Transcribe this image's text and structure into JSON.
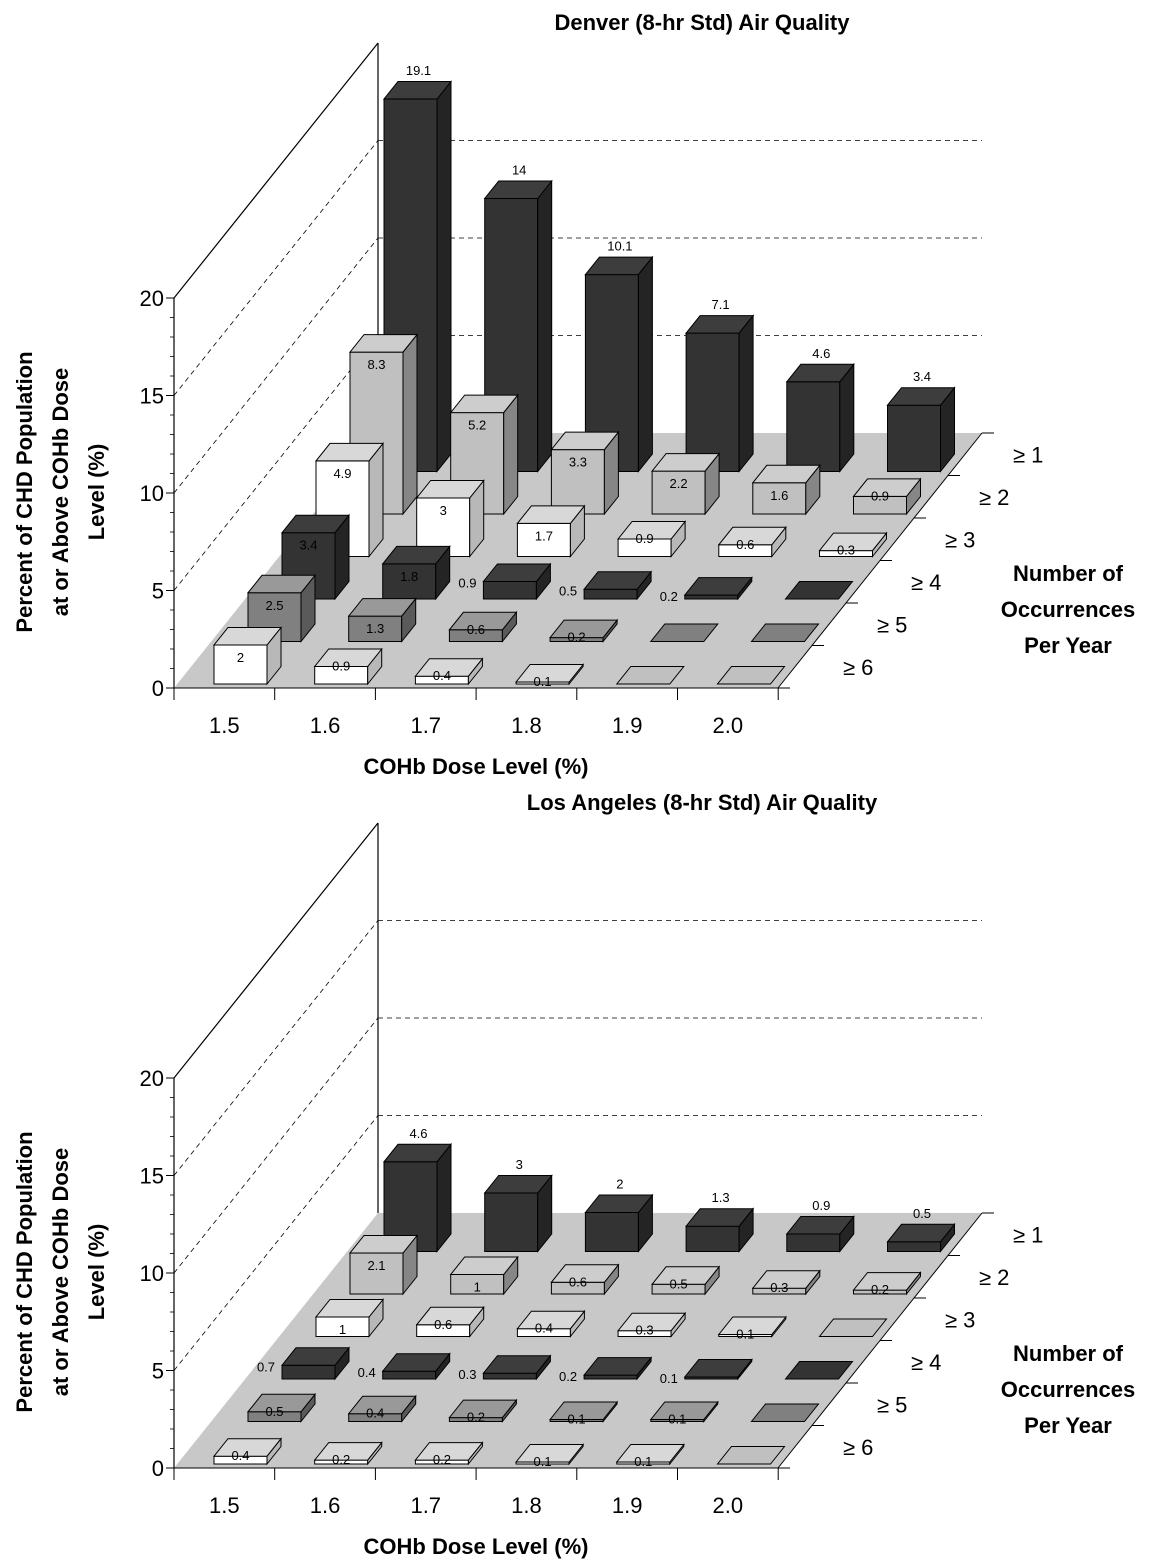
{
  "chart_data": [
    {
      "type": "bar",
      "title": "Denver (8-hr Std) Air Quality",
      "ylabel": [
        "Percent of CHD Population",
        "at or Above COHb Dose",
        "Level (%)"
      ],
      "xlabel": "COHb Dose Level (%)",
      "depth_label": [
        "Number of",
        "Occurrences",
        "Per Year"
      ],
      "categories": [
        "1.5",
        "1.6",
        "1.7",
        "1.8",
        "1.9",
        "2.0"
      ],
      "depth_categories": [
        "≥ 1",
        "≥ 2",
        "≥ 3",
        "≥ 4",
        "≥ 5",
        "≥ 6"
      ],
      "yticks": [
        "0",
        "5",
        "10",
        "15",
        "20"
      ],
      "ylim": [
        0,
        20
      ],
      "series": [
        {
          "name": "≥ 1",
          "values": [
            19.1,
            14,
            10.1,
            7.1,
            4.6,
            3.4
          ],
          "labels": [
            "19.1",
            "14",
            "10.1",
            "7.1",
            "4.6",
            "3.4"
          ]
        },
        {
          "name": "≥ 2",
          "values": [
            8.3,
            5.2,
            3.3,
            2.2,
            1.6,
            0.9
          ],
          "labels": [
            "8.3",
            "5.2",
            "3.3",
            "2.2",
            "1.6",
            "0.9"
          ]
        },
        {
          "name": "≥ 3",
          "values": [
            4.9,
            3,
            1.7,
            0.9,
            0.6,
            0.3
          ],
          "labels": [
            "4.9",
            "3",
            "1.7",
            "0.9",
            "0.6",
            "0.3"
          ]
        },
        {
          "name": "≥ 4",
          "values": [
            3.4,
            1.8,
            0.9,
            0.5,
            0.2,
            0
          ],
          "labels": [
            "3.4",
            "1.8",
            "0.9",
            "0.5",
            "0.2",
            ""
          ]
        },
        {
          "name": "≥ 5",
          "values": [
            2.5,
            1.3,
            0.6,
            0.2,
            0,
            0
          ],
          "labels": [
            "2.5",
            "1.3",
            "0.6",
            "0.2",
            "",
            ""
          ]
        },
        {
          "name": "≥ 6",
          "values": [
            2,
            0.9,
            0.4,
            0.1,
            0,
            0
          ],
          "labels": [
            "2",
            "0.9",
            "0.4",
            "0.1",
            "",
            ""
          ]
        }
      ],
      "colors": {
        "≥ 1": "#333333",
        "≥ 2": "#c0c0c0",
        "≥ 3": "#ffffff",
        "≥ 4": "#333333",
        "≥ 5": "#808080",
        "≥ 6": "#ffffff",
        "floor": "#c8c8c8"
      },
      "grid": "dashed"
    },
    {
      "type": "bar",
      "title": "Los Angeles (8-hr Std) Air Quality",
      "ylabel": [
        "Percent of CHD Population",
        "at or Above COHb Dose",
        "Level (%)"
      ],
      "xlabel": "COHb Dose Level (%)",
      "depth_label": [
        "Number of",
        "Occurrences",
        "Per Year"
      ],
      "categories": [
        "1.5",
        "1.6",
        "1.7",
        "1.8",
        "1.9",
        "2.0"
      ],
      "depth_categories": [
        "≥ 1",
        "≥ 2",
        "≥ 3",
        "≥ 4",
        "≥ 5",
        "≥ 6"
      ],
      "yticks": [
        "0",
        "5",
        "10",
        "15",
        "20"
      ],
      "ylim": [
        0,
        20
      ],
      "series": [
        {
          "name": "≥ 1",
          "values": [
            4.6,
            3,
            2,
            1.3,
            0.9,
            0.5
          ],
          "labels": [
            "4.6",
            "3",
            "2",
            "1.3",
            "0.9",
            "0.5"
          ]
        },
        {
          "name": "≥ 2",
          "values": [
            2.1,
            1,
            0.6,
            0.5,
            0.3,
            0.2
          ],
          "labels": [
            "2.1",
            "1",
            "0.6",
            "0.5",
            "0.3",
            "0.2"
          ]
        },
        {
          "name": "≥ 3",
          "values": [
            1,
            0.6,
            0.4,
            0.3,
            0.1,
            0
          ],
          "labels": [
            "1",
            "0.6",
            "0.4",
            "0.3",
            "0.1",
            ""
          ]
        },
        {
          "name": "≥ 4",
          "values": [
            0.7,
            0.4,
            0.3,
            0.2,
            0.1,
            0
          ],
          "labels": [
            "0.7",
            "0.4",
            "0.3",
            "0.2",
            "0.1",
            ""
          ]
        },
        {
          "name": "≥ 5",
          "values": [
            0.5,
            0.4,
            0.2,
            0.1,
            0.1,
            0
          ],
          "labels": [
            "0.5",
            "0.4",
            "0.2",
            "0.1",
            "0.1",
            ""
          ]
        },
        {
          "name": "≥ 6",
          "values": [
            0.4,
            0.2,
            0.2,
            0.1,
            0.1,
            0
          ],
          "labels": [
            "0.4",
            "0.2",
            "0.2",
            "0.1",
            "0.1",
            ""
          ]
        }
      ],
      "colors": {
        "≥ 1": "#333333",
        "≥ 2": "#c0c0c0",
        "≥ 3": "#ffffff",
        "≥ 4": "#333333",
        "≥ 5": "#808080",
        "≥ 6": "#ffffff",
        "floor": "#c8c8c8"
      },
      "grid": "dashed"
    }
  ]
}
